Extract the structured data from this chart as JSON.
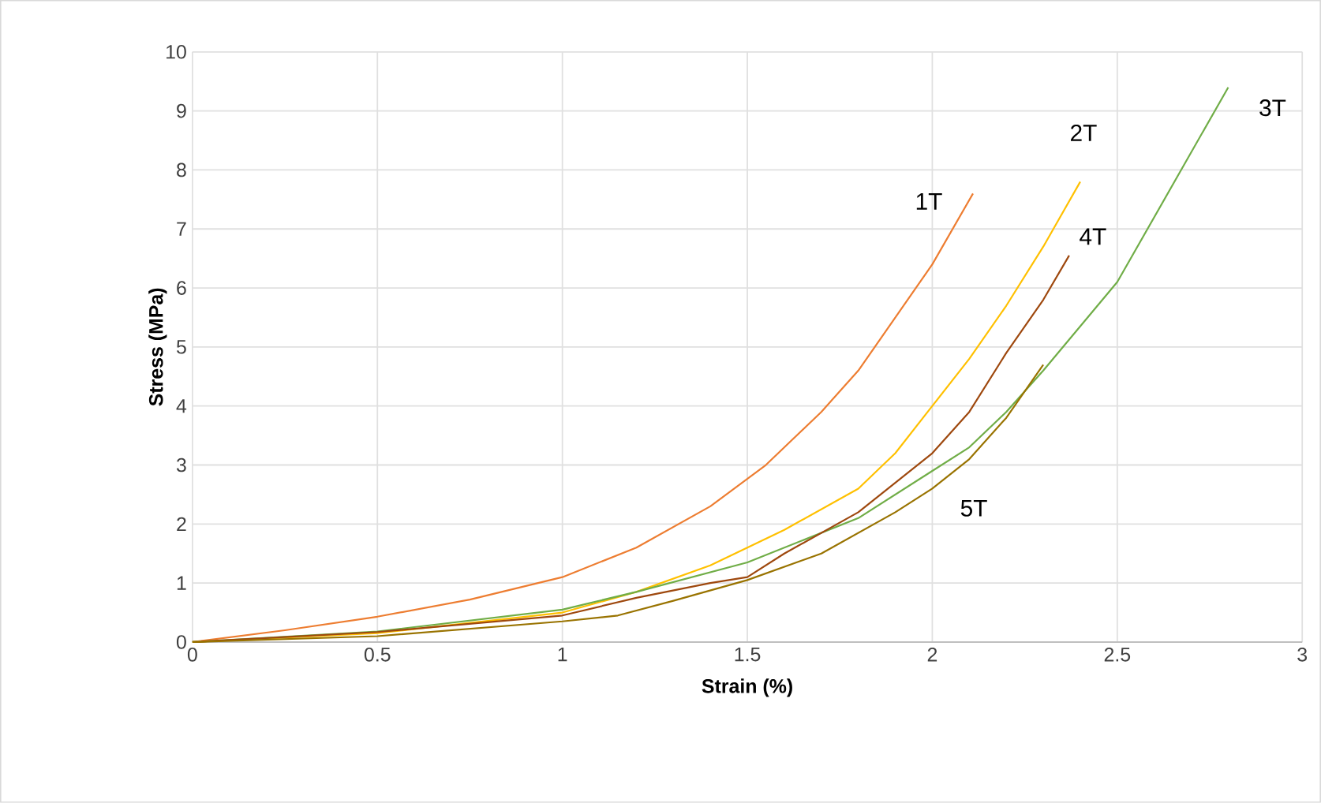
{
  "chart_data": {
    "type": "line",
    "xlabel": "Strain (%)",
    "ylabel": "Stress (MPa)",
    "xlim": [
      0,
      3
    ],
    "xticks": [
      0,
      0.5,
      1,
      1.5,
      2,
      2.5,
      3
    ],
    "ylim": [
      0,
      10
    ],
    "yticks": [
      0,
      1,
      2,
      3,
      4,
      5,
      6,
      7,
      8,
      9,
      10
    ],
    "grid": true,
    "legend": false,
    "marker": "none",
    "line_style": "solid",
    "series": [
      {
        "name": "1T",
        "color": "#ed7d31",
        "x": [
          0,
          0.25,
          0.5,
          0.75,
          1,
          1.2,
          1.4,
          1.55,
          1.7,
          1.8,
          1.9,
          2.0,
          2.11
        ],
        "values": [
          0,
          0.2,
          0.43,
          0.72,
          1.1,
          1.6,
          2.3,
          3.0,
          3.9,
          4.6,
          5.5,
          6.4,
          7.6
        ]
      },
      {
        "name": "2T",
        "color": "#ffc000",
        "x": [
          0,
          0.5,
          1,
          1.2,
          1.4,
          1.6,
          1.8,
          1.9,
          2.0,
          2.1,
          2.2,
          2.3,
          2.4
        ],
        "values": [
          0,
          0.15,
          0.5,
          0.85,
          1.3,
          1.9,
          2.6,
          3.2,
          4.0,
          4.8,
          5.7,
          6.7,
          7.8
        ]
      },
      {
        "name": "3T",
        "color": "#70ad47",
        "x": [
          0,
          0.5,
          1,
          1.2,
          1.5,
          1.8,
          2.0,
          2.1,
          2.2,
          2.3,
          2.5,
          2.6,
          2.7,
          2.8
        ],
        "values": [
          0,
          0.18,
          0.55,
          0.85,
          1.35,
          2.1,
          2.9,
          3.3,
          3.9,
          4.6,
          6.1,
          7.2,
          8.3,
          9.4
        ]
      },
      {
        "name": "4T",
        "color": "#9e480e",
        "x": [
          0,
          0.5,
          1,
          1.2,
          1.4,
          1.5,
          1.6,
          1.8,
          2.0,
          2.1,
          2.2,
          2.3,
          2.37
        ],
        "values": [
          0,
          0.17,
          0.45,
          0.75,
          1.0,
          1.1,
          1.5,
          2.2,
          3.2,
          3.9,
          4.9,
          5.8,
          6.55
        ]
      },
      {
        "name": "5T",
        "color": "#997300",
        "x": [
          0,
          0.5,
          1,
          1.15,
          1.3,
          1.5,
          1.7,
          1.9,
          2.0,
          2.1,
          2.2,
          2.3
        ],
        "values": [
          0,
          0.1,
          0.35,
          0.45,
          0.7,
          1.05,
          1.5,
          2.2,
          2.6,
          3.1,
          3.8,
          4.7
        ]
      }
    ]
  }
}
